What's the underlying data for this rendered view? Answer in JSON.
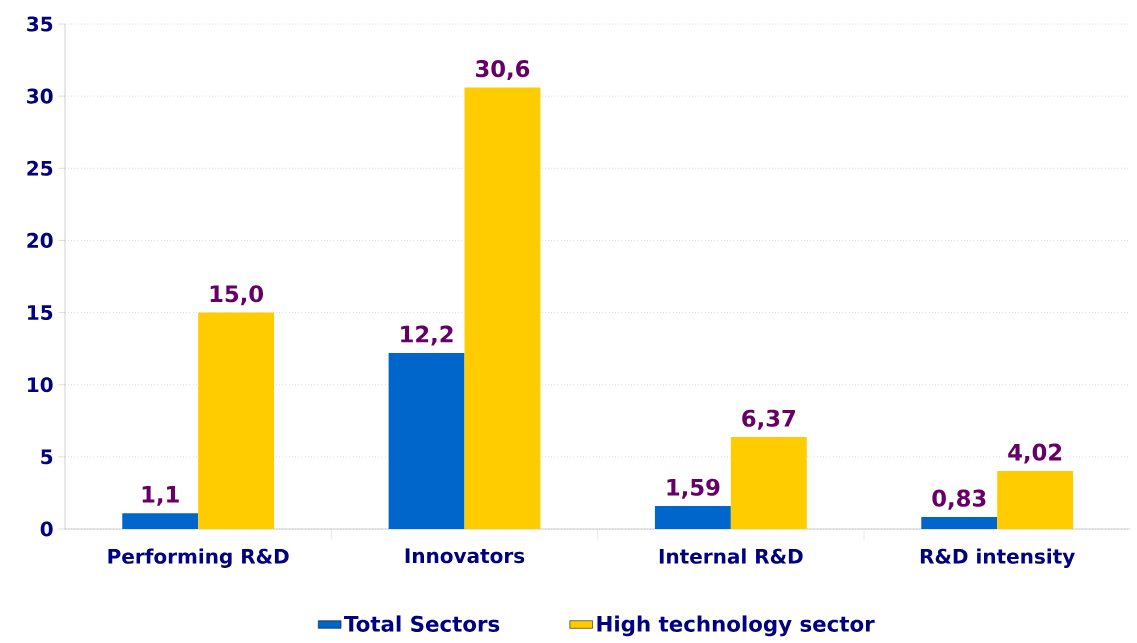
{
  "chart_data": {
    "type": "bar",
    "categories": [
      "Performing R&D",
      "Innovators",
      "Internal R&D",
      "R&D intensity"
    ],
    "series": [
      {
        "name": "Total Sectors",
        "color": "#0066cc",
        "values": [
          1.1,
          12.2,
          1.59,
          0.83
        ],
        "value_labels": [
          "1,1",
          "12,2",
          "1,59",
          "0,83"
        ]
      },
      {
        "name": "High technology sector",
        "color": "#ffcc00",
        "values": [
          15.0,
          30.6,
          6.37,
          4.02
        ],
        "value_labels": [
          "15,0",
          "30,6",
          "6,37",
          "4,02"
        ]
      }
    ],
    "ylim": [
      0,
      35
    ],
    "yticks": [
      0,
      5,
      10,
      15,
      20,
      25,
      30,
      35
    ],
    "grid": "y",
    "legend": "bottom"
  }
}
